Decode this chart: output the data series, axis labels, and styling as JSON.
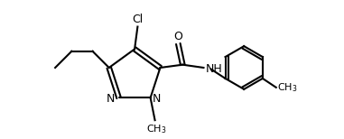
{
  "bg_color": "#ffffff",
  "line_color": "#000000",
  "figsize": [
    3.81,
    1.54
  ],
  "dpi": 100,
  "lw": 1.5,
  "font_size": 9,
  "atoms": {
    "Cl_label": "Cl",
    "O_label": "O",
    "N1_label": "N",
    "N2_label": "N",
    "NH_label": "NH",
    "CH3_label": "CH3",
    "CH3b_label": "CH3"
  }
}
